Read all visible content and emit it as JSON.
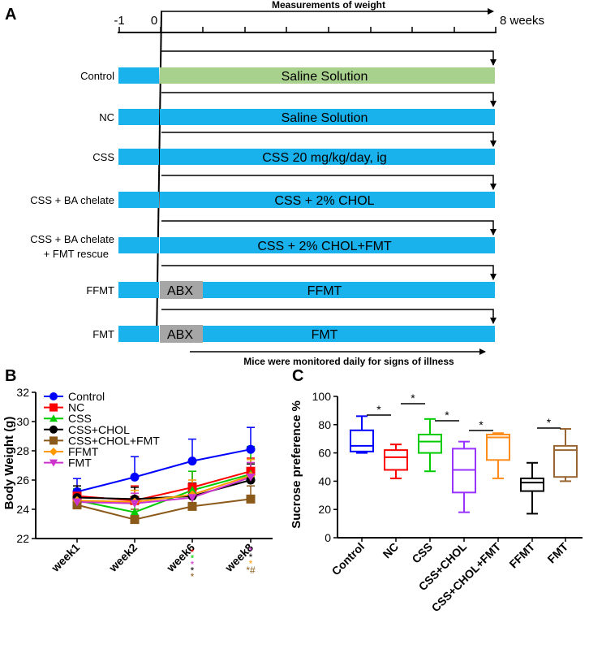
{
  "colors": {
    "blue_bar": "#1ab2ec",
    "green_bar": "#a9d18e",
    "grey_bar": "#a6a6a6",
    "control": "#0000ff",
    "nc": "#ff0000",
    "css": "#00cc00",
    "css_chol": "#000000",
    "css_chol_fmt": "#8b5a1a",
    "ffmt": "#ff9900",
    "fmt": "#cc33cc",
    "box_css_chol": "#9933ff",
    "box_css_chol_fmt": "#ff8c1a",
    "box_fmt": "#996633"
  },
  "panel_a": {
    "label": "A",
    "timeline_title": "Measurements of weight",
    "tick_start": "-1",
    "tick_zero": "0",
    "tick_end": "8 weeks",
    "footer_note": "Mice were monitored daily for signs of illness",
    "groups": [
      {
        "name": "Control",
        "treatment": "Saline Solution",
        "bar": "green",
        "abx": ""
      },
      {
        "name": "NC",
        "treatment": "Saline Solution",
        "bar": "blue",
        "abx": ""
      },
      {
        "name": "CSS",
        "treatment": "CSS 20 mg/kg/day, ig",
        "bar": "blue",
        "abx": ""
      },
      {
        "name": "CSS + BA chelate",
        "treatment": "CSS + 2% CHOL",
        "bar": "blue",
        "abx": ""
      },
      {
        "name": "CSS + BA chelate",
        "name2": "+ FMT rescue",
        "treatment": "CSS + 2% CHOL+FMT",
        "bar": "blue",
        "abx": ""
      },
      {
        "name": "FFMT",
        "treatment": "FFMT",
        "bar": "blue",
        "abx": "ABX"
      },
      {
        "name": "FMT",
        "treatment": "FMT",
        "bar": "blue",
        "abx": "ABX"
      }
    ]
  },
  "chart_data": [
    {
      "panel": "B",
      "type": "line",
      "ylabel": "Body Weight (g)",
      "xlabel": "",
      "ylim": [
        22,
        32
      ],
      "yticks": [
        22,
        24,
        26,
        28,
        30,
        32
      ],
      "categories": [
        "week1",
        "week2",
        "week6",
        "week8"
      ],
      "legend": "top-left",
      "series": [
        {
          "name": "Control",
          "color": "#0000ff",
          "marker": "circle",
          "values": [
            25.2,
            26.2,
            27.3,
            28.1
          ],
          "errors": [
            0.9,
            1.4,
            1.5,
            1.5
          ]
        },
        {
          "name": "NC",
          "color": "#ff0000",
          "marker": "square",
          "values": [
            24.9,
            24.6,
            25.5,
            26.6
          ],
          "errors": [
            0.7,
            1.0,
            1.1,
            0.9
          ]
        },
        {
          "name": "CSS",
          "color": "#00cc00",
          "marker": "triangle-up",
          "values": [
            24.6,
            23.8,
            25.3,
            26.4
          ],
          "errors": [
            0.8,
            0.9,
            1.3,
            1.9
          ]
        },
        {
          "name": "CSS+CHOL",
          "color": "#000000",
          "marker": "circle",
          "values": [
            24.8,
            24.7,
            24.9,
            26.0
          ],
          "errors": [
            0.8,
            0.8,
            0.9,
            1.1
          ]
        },
        {
          "name": "CSS+CHOL+FMT",
          "color": "#8b5a1a",
          "marker": "square",
          "values": [
            24.3,
            23.3,
            24.2,
            24.7
          ],
          "errors": [
            0.6,
            0.7,
            0.8,
            0.9
          ]
        },
        {
          "name": "FFMT",
          "color": "#ff9900",
          "marker": "diamond",
          "values": [
            24.6,
            24.5,
            25.0,
            26.3
          ],
          "errors": [
            0.7,
            0.8,
            1.0,
            1.1
          ]
        },
        {
          "name": "FMT",
          "color": "#cc33cc",
          "marker": "triangle-down",
          "values": [
            24.5,
            24.4,
            24.8,
            26.2
          ],
          "errors": [
            0.7,
            0.7,
            0.9,
            1.0
          ]
        }
      ],
      "annotations": {
        "week6": [
          {
            "text": "*",
            "color": "#ff0000"
          },
          {
            "text": "*",
            "color": "#00cc00"
          },
          {
            "text": "*",
            "color": "#cc33cc"
          },
          {
            "text": "*",
            "color": "#000000"
          },
          {
            "text": "*",
            "color": "#8b5a1a"
          }
        ],
        "week8": [
          {
            "text": "*",
            "color": "#cc33cc"
          },
          {
            "text": "*",
            "color": "#000000"
          },
          {
            "text": "*",
            "color": "#ff9900"
          },
          {
            "text": "*#",
            "color": "#8b5a1a"
          }
        ]
      }
    },
    {
      "panel": "C",
      "type": "box",
      "ylabel": "Sucrose preference %",
      "xlabel": "",
      "ylim": [
        0,
        100
      ],
      "yticks": [
        0,
        20,
        40,
        60,
        80,
        100
      ],
      "categories": [
        "Control",
        "NC",
        "CSS",
        "CSS+CHOL",
        "CSS+CHOL+FMT",
        "FFMT",
        "FMT"
      ],
      "series": [
        {
          "name": "Control",
          "color": "#0000ff",
          "min": 60,
          "q1": 61,
          "median": 65,
          "q3": 76,
          "max": 86
        },
        {
          "name": "NC",
          "color": "#ff0000",
          "min": 42,
          "q1": 48,
          "median": 57,
          "q3": 62,
          "max": 66
        },
        {
          "name": "CSS",
          "color": "#00cc00",
          "min": 47,
          "q1": 60,
          "median": 68,
          "q3": 73,
          "max": 84
        },
        {
          "name": "CSS+CHOL",
          "color": "#9933ff",
          "min": 18,
          "q1": 32,
          "median": 48,
          "q3": 63,
          "max": 68
        },
        {
          "name": "CSS+CHOL+FMT",
          "color": "#ff8c1a",
          "min": 42,
          "q1": 55,
          "median": 71,
          "q3": 73,
          "max": 74
        },
        {
          "name": "FFMT",
          "color": "#000000",
          "min": 17,
          "q1": 33,
          "median": 39,
          "q3": 42,
          "max": 53
        },
        {
          "name": "FMT",
          "color": "#996633",
          "min": 40,
          "q1": 43,
          "median": 62,
          "q3": 65,
          "max": 77
        }
      ],
      "significance": [
        {
          "from": 0,
          "to": 1,
          "label": "*"
        },
        {
          "from": 1,
          "to": 2,
          "label": "*"
        },
        {
          "from": 2,
          "to": 3,
          "label": "*"
        },
        {
          "from": 3,
          "to": 4,
          "label": "*"
        },
        {
          "from": 5,
          "to": 6,
          "label": "*"
        }
      ]
    }
  ]
}
